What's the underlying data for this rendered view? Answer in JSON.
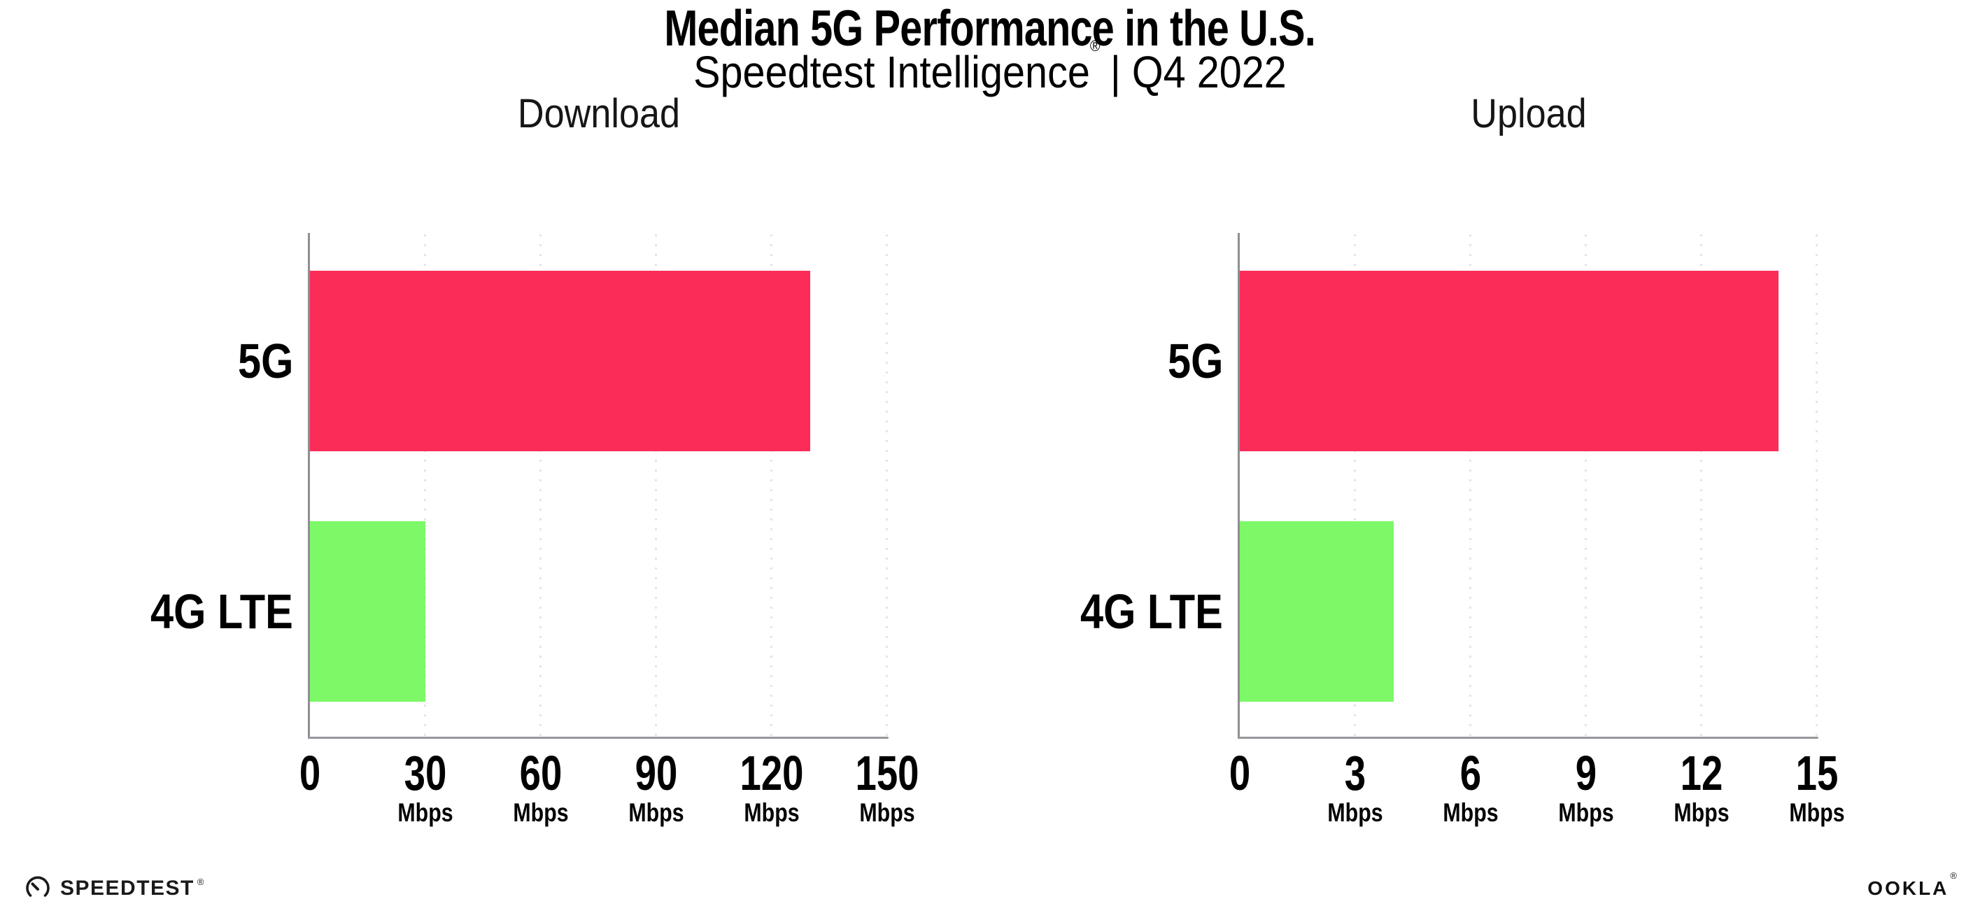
{
  "header": {
    "title": "Median 5G Performance in the U.S.",
    "subtitle_brand": "Speedtest Intelligence",
    "subtitle_mark": "®",
    "subtitle_period": "| Q4 2022"
  },
  "colors": {
    "bar_5g": "#FC2C59",
    "bar_4g_lte": "#7DF968",
    "axis": "#8E8E94",
    "gridline": "#E4E4EE"
  },
  "chart_data": [
    {
      "type": "bar",
      "orientation": "horizontal",
      "title": "Download",
      "categories": [
        "5G",
        "4G LTE"
      ],
      "values": [
        130,
        30
      ],
      "unit": "Mbps",
      "xlim": [
        0,
        150
      ],
      "xticks": [
        0,
        30,
        60,
        90,
        120,
        150
      ],
      "grid": "vertical-dotted",
      "legend": "none",
      "bar_colors": [
        "#FC2C59",
        "#7DF968"
      ]
    },
    {
      "type": "bar",
      "orientation": "horizontal",
      "title": "Upload",
      "categories": [
        "5G",
        "4G LTE"
      ],
      "values": [
        14,
        4
      ],
      "unit": "Mbps",
      "xlim": [
        0,
        15
      ],
      "xticks": [
        0,
        3,
        6,
        9,
        12,
        15
      ],
      "grid": "vertical-dotted",
      "legend": "none",
      "bar_colors": [
        "#FC2C59",
        "#7DF968"
      ]
    }
  ],
  "footer": {
    "speedtest_label": "SPEEDTEST",
    "speedtest_mark": "®",
    "ookla_label": "OOKLA",
    "ookla_mark": "®"
  }
}
